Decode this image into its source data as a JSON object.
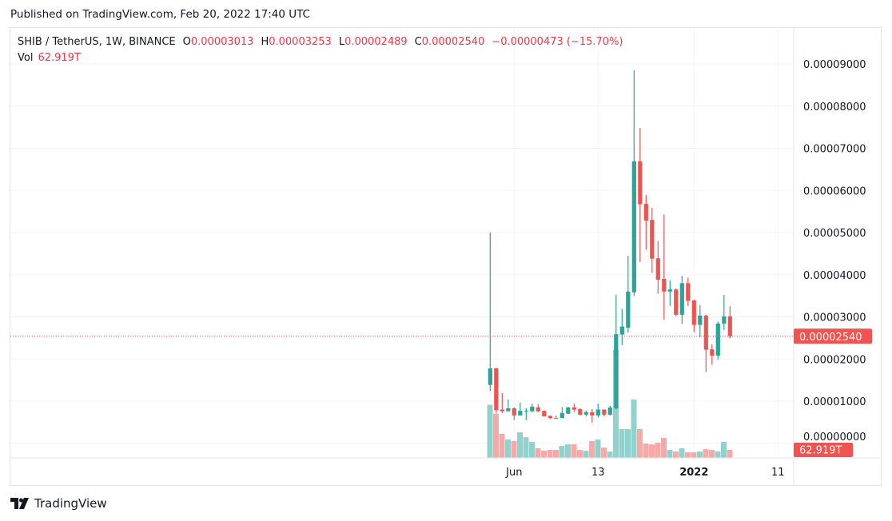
{
  "header": {
    "published": "Published on TradingView.com, Feb 20, 2022 17:40 UTC"
  },
  "legend": {
    "symbol": "SHIB / TetherUS, 1W, BINANCE",
    "o_label": "O",
    "o": "0.00003013",
    "h_label": "H",
    "h": "0.00003253",
    "l_label": "L",
    "l": "0.00002489",
    "c_label": "C",
    "c": "0.00002540",
    "change": "−0.00000473 (−15.70%)",
    "vol_label": "Vol",
    "vol": "62.919T"
  },
  "price_axis": {
    "ticks": [
      "0.00009000",
      "0.00008000",
      "0.00007000",
      "0.00006000",
      "0.00005000",
      "0.00004000",
      "0.00003000",
      "0.00002000",
      "0.00001000",
      "0.00000000"
    ],
    "tick_values": [
      9e-05,
      8e-05,
      7e-05,
      6e-05,
      5e-05,
      4e-05,
      3e-05,
      2e-05,
      1e-05,
      0
    ],
    "last_price_label": "0.00002540",
    "last_price": 2.54e-05,
    "volume_label": "62.919T"
  },
  "time_axis": {
    "labels": [
      {
        "text": "Jun",
        "index": 4,
        "bold": false
      },
      {
        "text": "13",
        "index": 18,
        "bold": false
      },
      {
        "text": "2022",
        "index": 34,
        "bold": true
      },
      {
        "text": "11",
        "index": 48,
        "bold": false
      }
    ]
  },
  "colors": {
    "up": "#26a69a",
    "down": "#ef5350",
    "up_vol": "#92d2cc",
    "down_vol": "#f7a9a7",
    "grid": "#f0f3fa",
    "label_bg": "#f05350"
  },
  "chart_data": {
    "type": "candlestick",
    "interval": "1W",
    "first_week": "2021-05-10",
    "ylim": [
      0,
      9e-05
    ],
    "grid": true,
    "ohlc": [
      [
        1.385,
        5.0,
        1.24,
        1.777
      ],
      [
        1.78,
        1.79,
        0.72,
        0.786
      ],
      [
        0.8,
        1.19,
        0.72,
        0.76
      ],
      [
        0.76,
        1.04,
        0.76,
        0.83
      ],
      [
        0.83,
        0.85,
        0.55,
        0.66
      ],
      [
        0.66,
        0.97,
        0.66,
        0.77
      ],
      [
        0.76,
        0.83,
        0.55,
        0.77
      ],
      [
        0.76,
        0.94,
        0.74,
        0.87
      ],
      [
        0.85,
        0.93,
        0.74,
        0.76
      ],
      [
        0.77,
        0.78,
        0.64,
        0.64
      ],
      [
        0.65,
        0.66,
        0.57,
        0.6
      ],
      [
        0.6,
        0.66,
        0.58,
        0.59
      ],
      [
        0.6,
        0.86,
        0.6,
        0.72
      ],
      [
        0.7,
        0.87,
        0.7,
        0.85
      ],
      [
        0.85,
        0.94,
        0.75,
        0.8
      ],
      [
        0.81,
        0.83,
        0.66,
        0.68
      ],
      [
        0.68,
        0.77,
        0.64,
        0.74
      ],
      [
        0.74,
        0.81,
        0.49,
        0.66
      ],
      [
        0.66,
        0.94,
        0.61,
        0.8
      ],
      [
        0.8,
        0.8,
        0.64,
        0.68
      ],
      [
        0.68,
        0.89,
        0.66,
        0.85
      ],
      [
        0.83,
        3.52,
        0.81,
        2.59
      ],
      [
        2.58,
        3.19,
        2.33,
        2.77
      ],
      [
        2.74,
        4.45,
        2.63,
        3.6
      ],
      [
        3.58,
        8.85,
        3.49,
        6.69
      ],
      [
        6.69,
        7.48,
        4.3,
        5.67
      ],
      [
        5.68,
        5.89,
        4.59,
        5.28
      ],
      [
        5.3,
        5.59,
        4.04,
        4.38
      ],
      [
        4.39,
        4.8,
        3.55,
        3.88
      ],
      [
        3.9,
        5.43,
        2.93,
        3.6
      ],
      [
        3.6,
        3.86,
        3.26,
        3.65
      ],
      [
        3.65,
        3.67,
        3.01,
        3.05
      ],
      [
        3.05,
        3.97,
        2.83,
        3.8
      ],
      [
        3.8,
        3.93,
        3.26,
        3.38
      ],
      [
        3.39,
        3.41,
        2.64,
        2.81
      ],
      [
        2.81,
        3.28,
        2.52,
        3.03
      ],
      [
        3.03,
        3.05,
        1.69,
        2.22
      ],
      [
        2.23,
        2.35,
        1.86,
        2.08
      ],
      [
        2.08,
        2.89,
        1.98,
        2.84
      ],
      [
        2.84,
        3.52,
        2.69,
        3.01
      ],
      [
        3.013,
        3.253,
        2.489,
        2.54
      ]
    ],
    "ohlc_unit": "1e-5 USDT",
    "volume_T": [
      430,
      358,
      195,
      148,
      135,
      206,
      167,
      128,
      76,
      56,
      63,
      63,
      95,
      108,
      108,
      63,
      56,
      135,
      148,
      82,
      50,
      879,
      232,
      232,
      473,
      232,
      115,
      108,
      122,
      161,
      63,
      50,
      76,
      43,
      43,
      50,
      69,
      63,
      50,
      128,
      62.919
    ]
  },
  "footer": {
    "brand": "TradingView"
  }
}
